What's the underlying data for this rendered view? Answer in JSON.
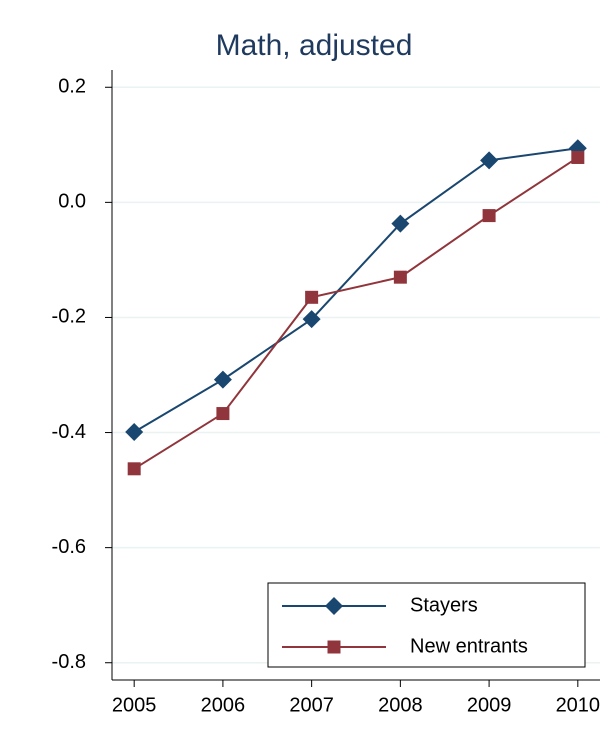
{
  "chart_data": {
    "type": "line",
    "title": "Math, adjusted",
    "x": [
      2005,
      2006,
      2007,
      2008,
      2009,
      2010
    ],
    "xlim": [
      2004.75,
      2010.25
    ],
    "xticks": [
      2005,
      2006,
      2007,
      2008,
      2009,
      2010
    ],
    "ylim": [
      -0.83,
      0.23
    ],
    "yticks": [
      -0.8,
      -0.6,
      -0.4,
      -0.2,
      {
        "value": 0,
        "label": "0.0"
      },
      0.2
    ],
    "grid": true,
    "legend": "lower right",
    "series": [
      {
        "name": "Stayers",
        "color": "#1a476f",
        "marker": "diamond",
        "values": [
          -0.399,
          -0.308,
          -0.203,
          -0.037,
          0.073,
          0.094
        ]
      },
      {
        "name": "New entrants",
        "color": "#90353b",
        "marker": "square",
        "values": [
          -0.463,
          -0.367,
          -0.165,
          -0.13,
          -0.023,
          0.078
        ]
      }
    ]
  }
}
